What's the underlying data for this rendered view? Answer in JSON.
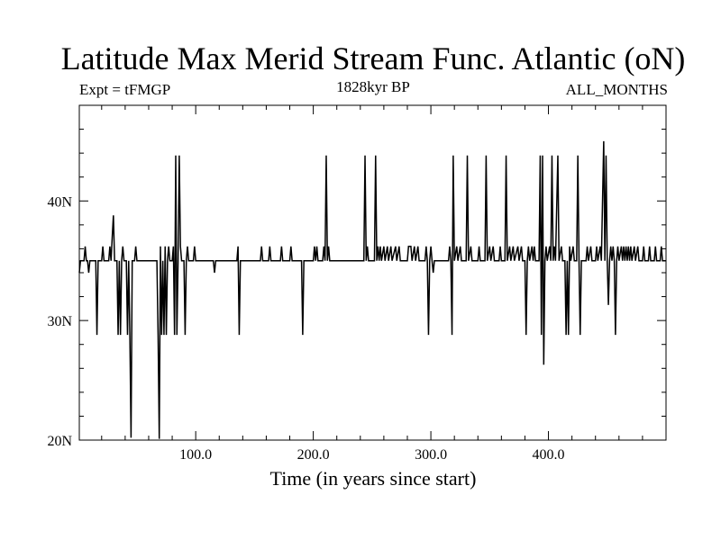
{
  "chart_data": {
    "type": "line",
    "title": "Latitude Max Merid Stream Func. Atlantic (oN)",
    "subtitle_left": "Expt = tFMGP",
    "subtitle_center": "1828kyr BP",
    "subtitle_right": "ALL_MONTHS",
    "xlabel": "Time (in years since start)",
    "ylabel": "",
    "xlim": [
      1,
      500
    ],
    "ylim": [
      20,
      48
    ],
    "x_ticks": [
      100,
      200,
      300,
      400
    ],
    "x_tick_labels": [
      "100.0",
      "200.0",
      "300.0",
      "400.0"
    ],
    "y_ticks": [
      20,
      30,
      40
    ],
    "y_tick_labels": [
      "20N",
      "30N",
      "40N"
    ],
    "grid": false,
    "baseline": 35,
    "series": [
      {
        "points": [
          [
            1,
            34
          ],
          [
            2,
            35
          ],
          [
            5,
            35
          ],
          [
            6,
            36.2
          ],
          [
            7,
            35
          ],
          [
            8,
            35
          ],
          [
            9,
            34
          ],
          [
            10,
            35
          ],
          [
            15,
            35
          ],
          [
            16,
            28.8
          ],
          [
            17,
            35
          ],
          [
            20,
            35
          ],
          [
            21,
            36.2
          ],
          [
            22,
            35
          ],
          [
            26,
            35
          ],
          [
            27,
            36.2
          ],
          [
            28,
            35
          ],
          [
            29,
            37
          ],
          [
            30,
            38.8
          ],
          [
            31,
            35
          ],
          [
            33,
            35
          ],
          [
            34,
            28.8
          ],
          [
            35,
            35
          ],
          [
            36,
            28.8
          ],
          [
            37,
            35
          ],
          [
            38,
            36.2
          ],
          [
            39,
            35
          ],
          [
            41,
            35
          ],
          [
            42,
            28.8
          ],
          [
            43,
            35
          ],
          [
            44,
            28.8
          ],
          [
            45,
            20.2
          ],
          [
            46,
            35
          ],
          [
            48,
            35
          ],
          [
            49,
            36.2
          ],
          [
            50,
            35
          ],
          [
            67,
            35
          ],
          [
            68,
            28.8
          ],
          [
            69,
            20.1
          ],
          [
            70,
            36.2
          ],
          [
            71,
            28.8
          ],
          [
            72,
            35
          ],
          [
            73,
            28.8
          ],
          [
            74,
            36.2
          ],
          [
            75,
            28.8
          ],
          [
            76,
            35
          ],
          [
            77,
            36.2
          ],
          [
            78,
            35
          ],
          [
            80,
            35
          ],
          [
            81,
            36.2
          ],
          [
            82,
            28.8
          ],
          [
            83,
            43.8
          ],
          [
            84,
            28.8
          ],
          [
            85,
            35
          ],
          [
            86,
            43.8
          ],
          [
            87,
            36.2
          ],
          [
            88,
            35
          ],
          [
            90,
            35
          ],
          [
            91,
            28.8
          ],
          [
            92,
            35
          ],
          [
            93,
            36.2
          ],
          [
            94,
            35
          ],
          [
            98,
            35
          ],
          [
            99,
            36.2
          ],
          [
            100,
            35
          ],
          [
            115,
            35
          ],
          [
            116,
            34
          ],
          [
            117,
            35
          ],
          [
            135,
            35
          ],
          [
            136,
            36.2
          ],
          [
            137,
            28.8
          ],
          [
            138,
            35
          ],
          [
            155,
            35
          ],
          [
            156,
            36.2
          ],
          [
            157,
            35
          ],
          [
            162,
            35
          ],
          [
            163,
            36.2
          ],
          [
            164,
            35
          ],
          [
            172,
            35
          ],
          [
            173,
            36.2
          ],
          [
            174,
            35
          ],
          [
            180,
            35
          ],
          [
            181,
            36.2
          ],
          [
            182,
            35
          ],
          [
            190,
            35
          ],
          [
            191,
            28.8
          ],
          [
            192,
            35
          ],
          [
            200,
            35
          ],
          [
            201,
            36.2
          ],
          [
            202,
            35
          ],
          [
            203,
            36.2
          ],
          [
            204,
            35
          ],
          [
            208,
            35
          ],
          [
            209,
            36.2
          ],
          [
            210,
            35
          ],
          [
            211,
            43.8
          ],
          [
            212,
            35
          ],
          [
            213,
            36.2
          ],
          [
            214,
            35
          ],
          [
            243,
            35
          ],
          [
            244,
            43.8
          ],
          [
            245,
            35
          ],
          [
            246,
            36.2
          ],
          [
            247,
            35
          ],
          [
            252,
            35
          ],
          [
            253,
            43.8
          ],
          [
            254,
            35
          ],
          [
            255,
            36.2
          ],
          [
            256,
            35
          ],
          [
            257,
            36.2
          ],
          [
            258,
            35
          ],
          [
            260,
            36.2
          ],
          [
            261,
            35
          ],
          [
            263,
            36.2
          ],
          [
            264,
            35
          ],
          [
            266,
            36.2
          ],
          [
            267,
            35
          ],
          [
            270,
            36.2
          ],
          [
            271,
            35
          ],
          [
            273,
            36.2
          ],
          [
            274,
            35
          ],
          [
            280,
            35
          ],
          [
            281,
            36.2
          ],
          [
            283,
            36.2
          ],
          [
            284,
            35
          ],
          [
            286,
            36.2
          ],
          [
            287,
            35
          ],
          [
            289,
            36.2
          ],
          [
            290,
            35
          ],
          [
            295,
            35
          ],
          [
            296,
            36.2
          ],
          [
            297,
            35
          ],
          [
            298,
            28.8
          ],
          [
            299,
            35
          ],
          [
            300,
            36.2
          ],
          [
            301,
            35
          ],
          [
            302,
            34
          ],
          [
            303,
            35
          ],
          [
            315,
            35
          ],
          [
            316,
            36.2
          ],
          [
            317,
            35
          ],
          [
            318,
            28.8
          ],
          [
            319,
            43.8
          ],
          [
            320,
            35
          ],
          [
            322,
            36.2
          ],
          [
            323,
            35
          ],
          [
            325,
            36.2
          ],
          [
            326,
            35
          ],
          [
            330,
            35
          ],
          [
            331,
            43.8
          ],
          [
            332,
            35
          ],
          [
            334,
            36.2
          ],
          [
            335,
            35
          ],
          [
            340,
            35
          ],
          [
            341,
            36.2
          ],
          [
            342,
            35
          ],
          [
            346,
            35
          ],
          [
            347,
            43.8
          ],
          [
            348,
            35
          ],
          [
            350,
            36.2
          ],
          [
            351,
            35
          ],
          [
            353,
            36.2
          ],
          [
            354,
            35
          ],
          [
            358,
            35
          ],
          [
            359,
            36.2
          ],
          [
            360,
            35
          ],
          [
            363,
            35
          ],
          [
            364,
            43.8
          ],
          [
            365,
            35
          ],
          [
            367,
            36.2
          ],
          [
            368,
            35
          ],
          [
            370,
            36.2
          ],
          [
            371,
            35
          ],
          [
            374,
            36.2
          ],
          [
            375,
            35
          ],
          [
            377,
            36.2
          ],
          [
            378,
            35
          ],
          [
            380,
            35
          ],
          [
            381,
            28.8
          ],
          [
            382,
            35
          ],
          [
            383,
            36.2
          ],
          [
            384,
            35
          ],
          [
            386,
            36.2
          ],
          [
            387,
            35
          ],
          [
            388,
            36.2
          ],
          [
            389,
            35
          ],
          [
            392,
            35
          ],
          [
            393,
            43.8
          ],
          [
            394,
            28.8
          ],
          [
            395,
            43.8
          ],
          [
            396,
            26.3
          ],
          [
            397,
            35
          ],
          [
            398,
            36.2
          ],
          [
            399,
            35
          ],
          [
            401,
            36.2
          ],
          [
            402,
            35
          ],
          [
            403,
            43.8
          ],
          [
            404,
            35
          ],
          [
            405,
            36.2
          ],
          [
            406,
            35
          ],
          [
            408,
            43.8
          ],
          [
            409,
            35
          ],
          [
            411,
            36.2
          ],
          [
            412,
            35
          ],
          [
            414,
            35
          ],
          [
            415,
            28.8
          ],
          [
            416,
            35
          ],
          [
            417,
            28.8
          ],
          [
            418,
            36.2
          ],
          [
            419,
            35
          ],
          [
            421,
            36.2
          ],
          [
            422,
            35
          ],
          [
            424,
            35
          ],
          [
            425,
            43.8
          ],
          [
            426,
            35
          ],
          [
            427,
            28.8
          ],
          [
            428,
            35
          ],
          [
            432,
            35
          ],
          [
            433,
            36.2
          ],
          [
            434,
            35
          ],
          [
            436,
            36.2
          ],
          [
            437,
            35
          ],
          [
            440,
            35
          ],
          [
            441,
            36.2
          ],
          [
            442,
            35
          ],
          [
            444,
            36.2
          ],
          [
            445,
            35
          ],
          [
            447,
            45
          ],
          [
            448,
            35
          ],
          [
            449,
            43.8
          ],
          [
            450,
            35
          ],
          [
            451,
            31.3
          ],
          [
            452,
            35
          ],
          [
            453,
            36.2
          ],
          [
            454,
            35
          ],
          [
            455,
            36.2
          ],
          [
            456,
            35
          ],
          [
            457,
            28.8
          ],
          [
            458,
            35
          ],
          [
            459,
            36.2
          ],
          [
            460,
            35
          ],
          [
            462,
            36.2
          ],
          [
            463,
            35
          ],
          [
            464,
            36.2
          ],
          [
            465,
            35
          ],
          [
            466,
            36.2
          ],
          [
            467,
            35
          ],
          [
            468,
            36.2
          ],
          [
            469,
            35
          ],
          [
            470,
            36.2
          ],
          [
            471,
            35
          ],
          [
            473,
            36.2
          ],
          [
            474,
            35
          ],
          [
            476,
            36.2
          ],
          [
            477,
            35
          ],
          [
            480,
            35
          ],
          [
            481,
            36.2
          ],
          [
            482,
            35
          ],
          [
            485,
            35
          ],
          [
            486,
            36.2
          ],
          [
            487,
            35
          ],
          [
            490,
            35
          ],
          [
            491,
            36.2
          ],
          [
            492,
            35
          ],
          [
            495,
            35
          ],
          [
            496,
            36.2
          ],
          [
            497,
            35
          ],
          [
            500,
            35
          ]
        ]
      }
    ]
  }
}
